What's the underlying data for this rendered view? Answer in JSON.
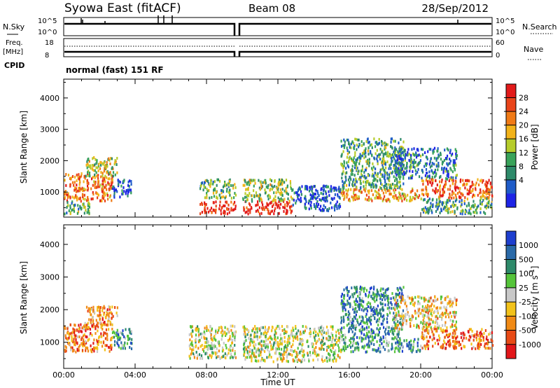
{
  "header": {
    "station": "Syowa East (fitACF)",
    "beam": "Beam 08",
    "date": "28/Sep/2012"
  },
  "small_panels": {
    "nsky_label": "N.Sky",
    "nsky_ticks": [
      "10^5",
      "10^0"
    ],
    "nsearch_label": "N.Search",
    "nsearch_ticks": [
      "10^5",
      "10^0"
    ],
    "freq_label": "Freq.",
    "freq_unit": "[MHz]",
    "freq_ticks": [
      "18",
      "8"
    ],
    "nave_label": "Nave",
    "nave_ticks": [
      "60",
      "0"
    ],
    "cpid_label": "CPID",
    "cpid_text": "normal (fast) 151 RF"
  },
  "colors": {
    "power_scale": [
      "#1e24e6",
      "#1f5cc8",
      "#2e8a6a",
      "#39a35a",
      "#b6cc2b",
      "#f2b31a",
      "#f07a16",
      "#e9441a",
      "#e21a1a"
    ],
    "velocity_scale": [
      "#1e3fcf",
      "#2a6aa8",
      "#2e8a6a",
      "#55c43a",
      "#c8c8c8",
      "#f2c21a",
      "#f08a16",
      "#e84a16",
      "#e2161a"
    ]
  },
  "chart_data": [
    {
      "type": "heatmap",
      "panel": "power",
      "ylabel": "Slant Range [km]",
      "yticks": [
        "1000",
        "2000",
        "3000",
        "4000"
      ],
      "ylim": [
        200,
        4600
      ],
      "xlim": [
        "00:00",
        "24:00"
      ],
      "xticks": [
        "00:00",
        "04:00",
        "08:00",
        "12:00",
        "16:00",
        "20:00",
        "00:00"
      ],
      "colorbar": {
        "label": "Power [dB]",
        "ticks": [
          "28",
          "24",
          "20",
          "16",
          "12",
          "8",
          "4"
        ]
      },
      "regions": [
        {
          "t0": 0.0,
          "t1": 2.7,
          "r0": 700,
          "r1": 1600,
          "level": 0.75
        },
        {
          "t0": 0.0,
          "t1": 1.5,
          "r0": 300,
          "r1": 700,
          "level": 0.35
        },
        {
          "t0": 1.2,
          "t1": 3.0,
          "r0": 1500,
          "r1": 2100,
          "level": 0.5
        },
        {
          "t0": 2.7,
          "t1": 3.8,
          "r0": 800,
          "r1": 1400,
          "level": 0.15
        },
        {
          "t0": 7.6,
          "t1": 9.6,
          "r0": 800,
          "r1": 1400,
          "level": 0.4
        },
        {
          "t0": 7.6,
          "t1": 9.6,
          "r0": 300,
          "r1": 700,
          "level": 0.95
        },
        {
          "t0": 10.0,
          "t1": 12.8,
          "r0": 300,
          "r1": 700,
          "level": 0.95
        },
        {
          "t0": 10.0,
          "t1": 12.8,
          "r0": 700,
          "r1": 1400,
          "level": 0.45
        },
        {
          "t0": 12.8,
          "t1": 15.5,
          "r0": 400,
          "r1": 1200,
          "level": 0.15
        },
        {
          "t0": 15.5,
          "t1": 20.0,
          "r0": 700,
          "r1": 1100,
          "level": 0.65
        },
        {
          "t0": 15.5,
          "t1": 19.0,
          "r0": 1100,
          "r1": 2700,
          "level": 0.35
        },
        {
          "t0": 18.5,
          "t1": 22.0,
          "r0": 1400,
          "r1": 2400,
          "level": 0.25
        },
        {
          "t0": 20.0,
          "t1": 24.0,
          "r0": 800,
          "r1": 1400,
          "level": 0.8
        },
        {
          "t0": 20.0,
          "t1": 24.0,
          "r0": 300,
          "r1": 800,
          "level": 0.35
        }
      ]
    },
    {
      "type": "heatmap",
      "panel": "velocity",
      "ylabel": "Slant Range [km]",
      "yticks": [
        "1000",
        "2000",
        "3000",
        "4000"
      ],
      "ylim": [
        200,
        4600
      ],
      "xlim": [
        "00:00",
        "24:00"
      ],
      "xticks": [
        "00:00",
        "04:00",
        "08:00",
        "12:00",
        "16:00",
        "20:00",
        "00:00"
      ],
      "xlabel": "Time UT",
      "colorbar": {
        "label": "Velocity [m s^-1]",
        "ticks": [
          "1000",
          "500",
          "100",
          "25",
          "-25",
          "-100",
          "-500",
          "-1000"
        ]
      },
      "regions": [
        {
          "t0": 0.0,
          "t1": 2.7,
          "r0": 700,
          "r1": 1600,
          "level": 0.75
        },
        {
          "t0": 1.2,
          "t1": 3.0,
          "r0": 1500,
          "r1": 2100,
          "level": 0.7
        },
        {
          "t0": 2.7,
          "t1": 3.8,
          "r0": 800,
          "r1": 1400,
          "level": 0.25
        },
        {
          "t0": 7.0,
          "t1": 9.6,
          "r0": 500,
          "r1": 1500,
          "level": 0.5
        },
        {
          "t0": 10.0,
          "t1": 15.5,
          "r0": 400,
          "r1": 1500,
          "level": 0.5
        },
        {
          "t0": 15.5,
          "t1": 19.0,
          "r0": 1100,
          "r1": 2700,
          "level": 0.25
        },
        {
          "t0": 15.5,
          "t1": 20.0,
          "r0": 700,
          "r1": 1100,
          "level": 0.3
        },
        {
          "t0": 18.5,
          "t1": 22.0,
          "r0": 1400,
          "r1": 2400,
          "level": 0.6
        },
        {
          "t0": 20.0,
          "t1": 24.0,
          "r0": 800,
          "r1": 1400,
          "level": 0.75
        }
      ]
    }
  ]
}
